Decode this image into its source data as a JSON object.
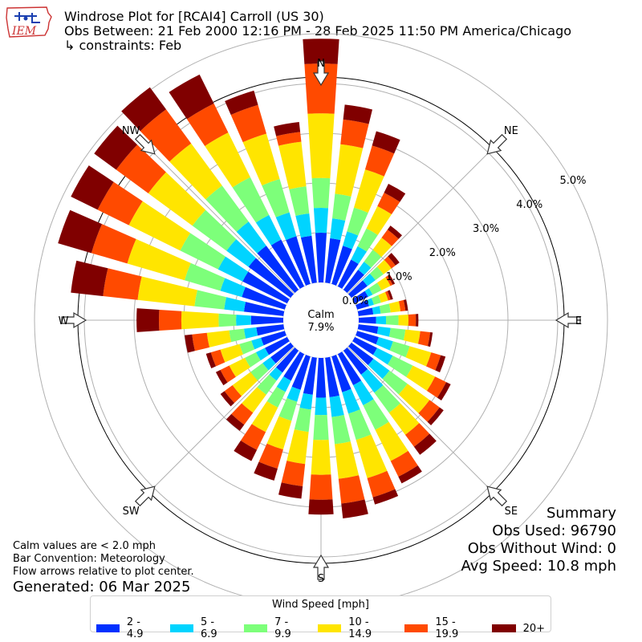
{
  "header": {
    "title": "Windrose Plot for [RCAI4] Carroll (US 30)",
    "obs_between": "Obs Between: 21 Feb 2000 12:16 PM - 28 Feb 2025 11:50 PM America/Chicago",
    "constraints": "↳ constraints: Feb"
  },
  "logo": {
    "text": "IEM",
    "icon": "iowa-state-outline-icon"
  },
  "calm": {
    "label": "Calm",
    "value": "7.9%"
  },
  "footer": {
    "calm_note": "Calm values are < 2.0 mph",
    "bar_convention": "Bar Convention: Meteorology",
    "flow_note": "Flow arrows relative to plot center.",
    "generated": "Generated: 06 Mar 2025"
  },
  "summary": {
    "title": "Summary",
    "obs_used": "Obs Used: 96790",
    "obs_without_wind": "Obs Without Wind: 0",
    "avg_speed": "Avg Speed: 10.8 mph"
  },
  "legend": {
    "title": "Wind Speed [mph]",
    "items": [
      {
        "label": "2 - 4.9",
        "color": "#0030ff"
      },
      {
        "label": "5 - 6.9",
        "color": "#00d4ff"
      },
      {
        "label": "7 - 9.9",
        "color": "#7dff7a"
      },
      {
        "label": "10 - 14.9",
        "color": "#ffe500"
      },
      {
        "label": "15 - 19.9",
        "color": "#ff4a00"
      },
      {
        "label": "20+",
        "color": "#800000"
      }
    ]
  },
  "chart_data": {
    "type": "windrose",
    "title": "Windrose Plot for [RCAI4] Carroll (US 30)",
    "compass_labels": [
      "N",
      "NE",
      "E",
      "SE",
      "S",
      "SW",
      "W",
      "NW"
    ],
    "radial_ticks": [
      "0.0%",
      "1.0%",
      "2.0%",
      "3.0%",
      "4.0%",
      "5.0%"
    ],
    "radial_range_percent": [
      0,
      5.5
    ],
    "grid": true,
    "direction_step_deg": 10,
    "speed_bins": [
      "2 - 4.9",
      "5 - 6.9",
      "7 - 9.9",
      "10 - 14.9",
      "15 - 19.9",
      "20+"
    ],
    "series_directions_deg": [
      0,
      10,
      20,
      30,
      40,
      50,
      60,
      70,
      80,
      90,
      100,
      110,
      120,
      130,
      140,
      150,
      160,
      170,
      180,
      190,
      200,
      210,
      220,
      230,
      240,
      250,
      260,
      270,
      280,
      290,
      300,
      310,
      320,
      330,
      340,
      350
    ],
    "series_cumulative_percent": [
      [
        1.0,
        1.5,
        2.1,
        3.4,
        4.4,
        4.9
      ],
      [
        0.9,
        1.3,
        1.8,
        2.8,
        3.3,
        3.6
      ],
      [
        0.8,
        1.1,
        1.6,
        2.4,
        2.9,
        3.2
      ],
      [
        0.6,
        0.9,
        1.3,
        1.8,
        2.1,
        2.3
      ],
      [
        0.5,
        0.7,
        1.0,
        1.3,
        1.5,
        1.6
      ],
      [
        0.4,
        0.6,
        0.8,
        1.0,
        1.1,
        1.2
      ],
      [
        0.3,
        0.4,
        0.6,
        0.8,
        0.85,
        0.9
      ],
      [
        0.25,
        0.35,
        0.5,
        0.65,
        0.7,
        0.75
      ],
      [
        0.3,
        0.45,
        0.65,
        0.85,
        0.95,
        1.0
      ],
      [
        0.35,
        0.55,
        0.8,
        1.0,
        1.15,
        1.2
      ],
      [
        0.4,
        0.65,
        0.95,
        1.25,
        1.45,
        1.5
      ],
      [
        0.45,
        0.75,
        1.1,
        1.55,
        1.75,
        1.85
      ],
      [
        0.5,
        0.85,
        1.3,
        1.8,
        2.05,
        2.15
      ],
      [
        0.55,
        0.95,
        1.4,
        1.95,
        2.2,
        2.3
      ],
      [
        0.6,
        1.05,
        1.55,
        2.1,
        2.4,
        2.6
      ],
      [
        0.7,
        1.15,
        1.7,
        2.4,
        2.75,
        2.9
      ],
      [
        0.75,
        1.2,
        1.75,
        2.55,
        2.95,
        3.1
      ],
      [
        0.8,
        1.2,
        1.75,
        2.45,
        2.95,
        3.25
      ],
      [
        0.8,
        1.15,
        1.65,
        2.35,
        2.85,
        3.15
      ],
      [
        0.75,
        1.05,
        1.5,
        2.15,
        2.6,
        2.85
      ],
      [
        0.7,
        0.95,
        1.35,
        1.95,
        2.35,
        2.6
      ],
      [
        0.6,
        0.85,
        1.2,
        1.75,
        2.15,
        2.4
      ],
      [
        0.55,
        0.75,
        1.1,
        1.55,
        1.85,
        2.0
      ],
      [
        0.5,
        0.7,
        1.0,
        1.45,
        1.65,
        1.75
      ],
      [
        0.5,
        0.7,
        0.95,
        1.3,
        1.5,
        1.6
      ],
      [
        0.5,
        0.7,
        0.95,
        1.35,
        1.55,
        1.65
      ],
      [
        0.55,
        0.8,
        1.1,
        1.55,
        1.85,
        2.0
      ],
      [
        0.65,
        0.95,
        1.3,
        2.05,
        2.5,
        2.95
      ],
      [
        0.8,
        1.2,
        1.8,
        2.95,
        3.65,
        4.3
      ],
      [
        0.9,
        1.35,
        2.1,
        3.3,
        4.05,
        4.75
      ],
      [
        1.0,
        1.55,
        2.4,
        3.55,
        4.25,
        4.85
      ],
      [
        1.05,
        1.6,
        2.45,
        3.55,
        4.35,
        4.9
      ],
      [
        1.1,
        1.7,
        2.6,
        3.65,
        4.5,
        5.05
      ],
      [
        1.05,
        1.6,
        2.45,
        3.45,
        4.1,
        4.75
      ],
      [
        1.0,
        1.5,
        2.2,
        3.15,
        3.75,
        4.05
      ],
      [
        0.95,
        1.4,
        1.95,
        2.85,
        3.05,
        3.25
      ]
    ]
  }
}
